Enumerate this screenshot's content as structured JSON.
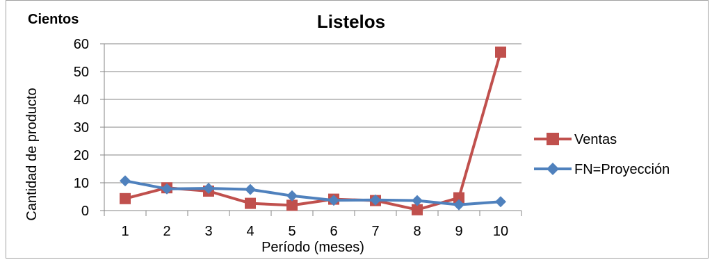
{
  "chart_data": {
    "type": "line",
    "title": "Listelos",
    "unit_label": "Cientos",
    "xlabel": "Período (meses)",
    "ylabel": "Cantidad de producto",
    "categories": [
      "1",
      "2",
      "3",
      "4",
      "5",
      "6",
      "7",
      "8",
      "9",
      "10"
    ],
    "ylim": [
      0,
      60
    ],
    "yticks": [
      "0",
      "10",
      "20",
      "30",
      "40",
      "50",
      "60"
    ],
    "grid": true,
    "legend_position": "right",
    "series": [
      {
        "name": "Ventas",
        "color": "#c0504d",
        "marker": "square",
        "values": [
          4.3,
          8.2,
          7.0,
          2.6,
          1.9,
          4.1,
          3.6,
          0.3,
          4.6,
          57.0
        ]
      },
      {
        "name": "FN=Proyección",
        "color": "#4f81bd",
        "marker": "diamond",
        "values": [
          10.7,
          7.8,
          8.0,
          7.6,
          5.3,
          3.7,
          3.8,
          3.6,
          2.1,
          3.2
        ]
      }
    ]
  }
}
